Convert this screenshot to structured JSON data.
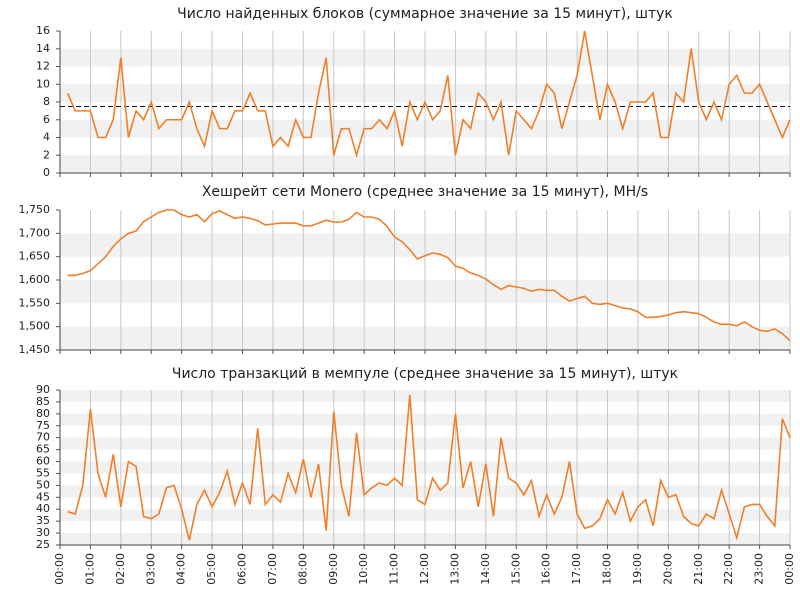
{
  "chart_data": [
    {
      "type": "line",
      "title": "Число найденных блоков (суммарное значение за 15 минут), штук",
      "x": [
        0.25,
        0.5,
        0.75,
        1,
        1.25,
        1.5,
        1.75,
        2,
        2.25,
        2.5,
        2.75,
        3,
        3.25,
        3.5,
        3.75,
        4,
        4.25,
        4.5,
        4.75,
        5,
        5.25,
        5.5,
        5.75,
        6,
        6.25,
        6.5,
        6.75,
        7,
        7.25,
        7.5,
        7.75,
        8,
        8.25,
        8.5,
        8.75,
        9,
        9.25,
        9.5,
        9.75,
        10,
        10.25,
        10.5,
        10.75,
        11,
        11.25,
        11.5,
        11.75,
        12,
        12.25,
        12.5,
        12.75,
        13,
        13.25,
        13.5,
        13.75,
        14,
        14.25,
        14.5,
        14.75,
        15,
        15.25,
        15.5,
        15.75,
        16,
        16.25,
        16.5,
        16.75,
        17,
        17.25,
        17.5,
        17.75,
        18,
        18.25,
        18.5,
        18.75,
        19,
        19.25,
        19.5,
        19.75,
        20,
        20.25,
        20.5,
        20.75,
        21,
        21.25,
        21.5,
        21.75,
        22,
        22.25,
        22.5,
        22.75,
        23,
        23.25,
        23.5,
        23.75,
        24
      ],
      "series": [
        {
          "color": "#f07f2a",
          "values": [
            9,
            7,
            7,
            7,
            4,
            4,
            6,
            13,
            4,
            7,
            6,
            8,
            5,
            6,
            6,
            6,
            8,
            5,
            3,
            7,
            5,
            5,
            7,
            7,
            9,
            7,
            7,
            3,
            4,
            3,
            6,
            4,
            4,
            9,
            13,
            2,
            5,
            5,
            2,
            5,
            5,
            6,
            5,
            7,
            3,
            8,
            6,
            8,
            6,
            7,
            11,
            2,
            6,
            5,
            9,
            8,
            6,
            8,
            2,
            7,
            6,
            5,
            7,
            10,
            9,
            5,
            8,
            11,
            16,
            11,
            6,
            10,
            8,
            5,
            8,
            8,
            8,
            9,
            4,
            4,
            9,
            8,
            14,
            8,
            6,
            8,
            6,
            10,
            11,
            9,
            9,
            10,
            8,
            6,
            4,
            6
          ]
        }
      ],
      "hline": 7.5,
      "xlim": [
        0,
        24
      ],
      "xticks": [
        0,
        1,
        2,
        3,
        4,
        5,
        6,
        7,
        8,
        9,
        10,
        11,
        12,
        13,
        14,
        15,
        16,
        17,
        18,
        19,
        20,
        21,
        22,
        23,
        24
      ],
      "ylim": [
        0,
        16
      ],
      "yticks": [
        0,
        2,
        4,
        6,
        8,
        10,
        12,
        14,
        16
      ],
      "grid": true
    },
    {
      "type": "line",
      "title": "Хешрейт сети Monero (среднее значение за 15 минут), MH/s",
      "x": [
        0.25,
        0.5,
        0.75,
        1,
        1.25,
        1.5,
        1.75,
        2,
        2.25,
        2.5,
        2.75,
        3,
        3.25,
        3.5,
        3.75,
        4,
        4.25,
        4.5,
        4.75,
        5,
        5.25,
        5.5,
        5.75,
        6,
        6.25,
        6.5,
        6.75,
        7,
        7.25,
        7.5,
        7.75,
        8,
        8.25,
        8.5,
        8.75,
        9,
        9.25,
        9.5,
        9.75,
        10,
        10.25,
        10.5,
        10.75,
        11,
        11.25,
        11.5,
        11.75,
        12,
        12.25,
        12.5,
        12.75,
        13,
        13.25,
        13.5,
        13.75,
        14,
        14.25,
        14.5,
        14.75,
        15,
        15.25,
        15.5,
        15.75,
        16,
        16.25,
        16.5,
        16.75,
        17,
        17.25,
        17.5,
        17.75,
        18,
        18.25,
        18.5,
        18.75,
        19,
        19.25,
        19.5,
        19.75,
        20,
        20.25,
        20.5,
        20.75,
        21,
        21.25,
        21.5,
        21.75,
        22,
        22.25,
        22.5,
        22.75,
        23,
        23.25,
        23.5,
        23.75,
        24
      ],
      "series": [
        {
          "color": "#f07f2a",
          "values": [
            1610,
            1610,
            1614,
            1620,
            1635,
            1650,
            1672,
            1688,
            1700,
            1705,
            1725,
            1735,
            1745,
            1750,
            1750,
            1740,
            1735,
            1740,
            1725,
            1742,
            1748,
            1740,
            1732,
            1735,
            1732,
            1727,
            1718,
            1720,
            1722,
            1722,
            1722,
            1716,
            1716,
            1722,
            1728,
            1724,
            1724,
            1730,
            1745,
            1735,
            1735,
            1730,
            1715,
            1692,
            1682,
            1665,
            1645,
            1652,
            1658,
            1655,
            1648,
            1630,
            1625,
            1615,
            1610,
            1602,
            1590,
            1580,
            1588,
            1585,
            1582,
            1576,
            1580,
            1578,
            1578,
            1565,
            1555,
            1560,
            1565,
            1550,
            1548,
            1550,
            1545,
            1540,
            1538,
            1532,
            1520,
            1520,
            1522,
            1525,
            1530,
            1532,
            1530,
            1528,
            1520,
            1510,
            1505,
            1505,
            1502,
            1510,
            1500,
            1492,
            1490,
            1495,
            1485,
            1470
          ]
        }
      ],
      "xlim": [
        0,
        24
      ],
      "xticks": [
        0,
        1,
        2,
        3,
        4,
        5,
        6,
        7,
        8,
        9,
        10,
        11,
        12,
        13,
        14,
        15,
        16,
        17,
        18,
        19,
        20,
        21,
        22,
        23,
        24
      ],
      "ylim": [
        1450,
        1750
      ],
      "yticks": [
        {
          "value": 1450,
          "label": "1,450"
        },
        {
          "value": 1500,
          "label": "1,500"
        },
        {
          "value": 1550,
          "label": "1,550"
        },
        {
          "value": 1600,
          "label": "1,600"
        },
        {
          "value": 1650,
          "label": "1,650"
        },
        {
          "value": 1700,
          "label": "1,700"
        },
        {
          "value": 1750,
          "label": "1,750"
        }
      ],
      "grid": true
    },
    {
      "type": "line",
      "title": "Число транзакций в мемпуле (среднее значение за 15 минут), штук",
      "x": [
        0.25,
        0.5,
        0.75,
        1,
        1.25,
        1.5,
        1.75,
        2,
        2.25,
        2.5,
        2.75,
        3,
        3.25,
        3.5,
        3.75,
        4,
        4.25,
        4.5,
        4.75,
        5,
        5.25,
        5.5,
        5.75,
        6,
        6.25,
        6.5,
        6.75,
        7,
        7.25,
        7.5,
        7.75,
        8,
        8.25,
        8.5,
        8.75,
        9,
        9.25,
        9.5,
        9.75,
        10,
        10.25,
        10.5,
        10.75,
        11,
        11.25,
        11.5,
        11.75,
        12,
        12.25,
        12.5,
        12.75,
        13,
        13.25,
        13.5,
        13.75,
        14,
        14.25,
        14.5,
        14.75,
        15,
        15.25,
        15.5,
        15.75,
        16,
        16.25,
        16.5,
        16.75,
        17,
        17.25,
        17.5,
        17.75,
        18,
        18.25,
        18.5,
        18.75,
        19,
        19.25,
        19.5,
        19.75,
        20,
        20.25,
        20.5,
        20.75,
        21,
        21.25,
        21.5,
        21.75,
        22,
        22.25,
        22.5,
        22.75,
        23,
        23.25,
        23.5,
        23.75,
        24
      ],
      "series": [
        {
          "color": "#f07f2a",
          "values": [
            39,
            38,
            50,
            82,
            55,
            45,
            63,
            41,
            60,
            58,
            37,
            36,
            38,
            49,
            50,
            40,
            27,
            42,
            48,
            41,
            47,
            56,
            42,
            51,
            42,
            74,
            42,
            46,
            43,
            55,
            47,
            61,
            45,
            59,
            31,
            81,
            50,
            37,
            72,
            46,
            49,
            51,
            50,
            53,
            50,
            88,
            44,
            42,
            53,
            48,
            51,
            80,
            49,
            60,
            41,
            59,
            37,
            70,
            53,
            51,
            46,
            52,
            37,
            46,
            38,
            45,
            60,
            38,
            32,
            33,
            36,
            44,
            38,
            47,
            35,
            41,
            44,
            33,
            52,
            45,
            46,
            37,
            34,
            33,
            38,
            36,
            48,
            38,
            28,
            41,
            42,
            42,
            37,
            33,
            78,
            70
          ]
        }
      ],
      "xlim": [
        0,
        24
      ],
      "xticks": [
        {
          "value": 0,
          "label": "00:00"
        },
        {
          "value": 1,
          "label": "01:00"
        },
        {
          "value": 2,
          "label": "02:00"
        },
        {
          "value": 3,
          "label": "03:00"
        },
        {
          "value": 4,
          "label": "04:00"
        },
        {
          "value": 5,
          "label": "05:00"
        },
        {
          "value": 6,
          "label": "06:00"
        },
        {
          "value": 7,
          "label": "07:00"
        },
        {
          "value": 8,
          "label": "08:00"
        },
        {
          "value": 9,
          "label": "09:00"
        },
        {
          "value": 10,
          "label": "10:00"
        },
        {
          "value": 11,
          "label": "11:00"
        },
        {
          "value": 12,
          "label": "12:00"
        },
        {
          "value": 13,
          "label": "13:00"
        },
        {
          "value": 14,
          "label": "14:00"
        },
        {
          "value": 15,
          "label": "15:00"
        },
        {
          "value": 16,
          "label": "16:00"
        },
        {
          "value": 17,
          "label": "17:00"
        },
        {
          "value": 18,
          "label": "18:00"
        },
        {
          "value": 19,
          "label": "19:00"
        },
        {
          "value": 20,
          "label": "20:00"
        },
        {
          "value": 21,
          "label": "21:00"
        },
        {
          "value": 22,
          "label": "22:00"
        },
        {
          "value": 23,
          "label": "23:00"
        },
        {
          "value": 24,
          "label": "00:00"
        }
      ],
      "ylim": [
        25,
        90
      ],
      "yticks": [
        25,
        30,
        35,
        40,
        45,
        50,
        55,
        60,
        65,
        70,
        75,
        80,
        85,
        90
      ],
      "grid": true
    }
  ]
}
